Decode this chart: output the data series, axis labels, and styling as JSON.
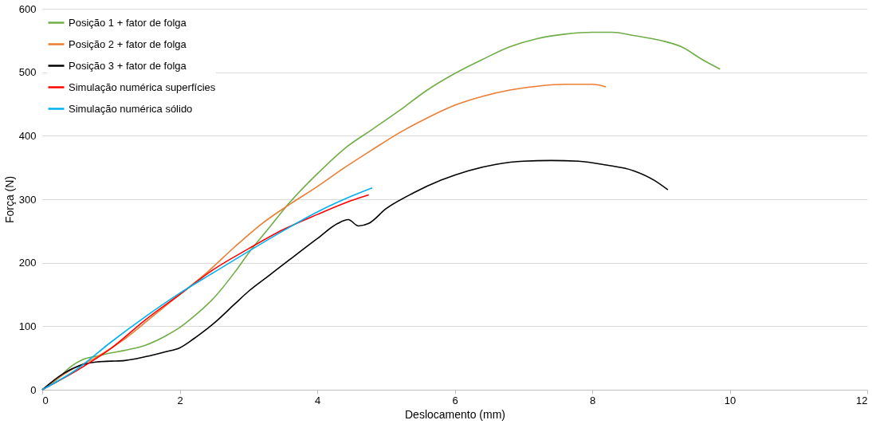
{
  "chart_data": {
    "type": "line",
    "xlabel": "Deslocamento (mm)",
    "ylabel": "Força (N)",
    "xlim": [
      0,
      12
    ],
    "xticks": [
      0,
      2,
      4,
      6,
      8,
      10,
      12
    ],
    "ylim": [
      0,
      600
    ],
    "yticks": [
      0,
      100,
      200,
      300,
      400,
      500,
      600
    ],
    "grid": "y",
    "legend": "top left",
    "marker": "none",
    "line_style": "solid",
    "series": [
      {
        "name": "Posição 1 + fator de folga",
        "color": "#70ad47",
        "x": [
          0,
          0.2,
          0.4,
          0.6,
          0.8,
          1,
          1.2,
          1.5,
          1.8,
          2,
          2.2,
          2.5,
          2.8,
          3,
          3.3,
          3.6,
          4,
          4.4,
          4.8,
          5.2,
          5.6,
          6,
          6.4,
          6.8,
          7.2,
          7.6,
          8,
          8.3,
          8.6,
          9,
          9.3,
          9.6,
          9.86
        ],
        "values": [
          0,
          15,
          35,
          48,
          53,
          58,
          62,
          70,
          85,
          98,
          115,
          145,
          185,
          215,
          255,
          295,
          340,
          380,
          410,
          440,
          472,
          498,
          520,
          540,
          553,
          560,
          563,
          563,
          558,
          550,
          540,
          520,
          505
        ]
      },
      {
        "name": "Posição 2 + fator de folga",
        "color": "#ed7d31",
        "x": [
          0,
          0.4,
          0.8,
          1.2,
          1.6,
          2,
          2.4,
          2.8,
          3.2,
          3.6,
          4,
          4.4,
          4.8,
          5.2,
          5.6,
          6,
          6.4,
          6.8,
          7.2,
          7.6,
          8,
          8.2
        ],
        "values": [
          0,
          30,
          52,
          80,
          115,
          150,
          185,
          225,
          262,
          292,
          320,
          350,
          378,
          405,
          428,
          448,
          462,
          472,
          478,
          481,
          481,
          477
        ]
      },
      {
        "name": "Posição 3 + fator de folga",
        "color": "#000000",
        "x": [
          0,
          0.3,
          0.6,
          0.8,
          1,
          1.2,
          1.5,
          1.8,
          2,
          2.2,
          2.5,
          2.8,
          3,
          3.3,
          3.6,
          4,
          4.3,
          4.45,
          4.6,
          4.75,
          5,
          5.4,
          5.8,
          6.2,
          6.6,
          7,
          7.4,
          7.8,
          8.2,
          8.6,
          8.9,
          9.1
        ],
        "values": [
          0,
          25,
          40,
          44,
          45,
          46,
          52,
          60,
          66,
          80,
          105,
          135,
          155,
          180,
          205,
          238,
          262,
          268,
          258,
          262,
          285,
          310,
          330,
          345,
          355,
          360,
          361,
          360,
          354,
          345,
          330,
          315
        ]
      },
      {
        "name": "Simulação numérica superfícies",
        "color": "#ff0000",
        "x": [
          0,
          0.5,
          1,
          1.5,
          2,
          2.5,
          3,
          3.5,
          4,
          4.5,
          4.75
        ],
        "values": [
          0,
          30,
          65,
          110,
          150,
          190,
          222,
          252,
          276,
          298,
          307
        ]
      },
      {
        "name": "Simulação numérica sólido",
        "color": "#00b0f0",
        "x": [
          0,
          0.5,
          1,
          1.5,
          2,
          2.5,
          3,
          3.5,
          4,
          4.5,
          4.8
        ],
        "values": [
          0,
          32,
          75,
          115,
          152,
          185,
          218,
          250,
          280,
          305,
          318
        ]
      }
    ]
  }
}
